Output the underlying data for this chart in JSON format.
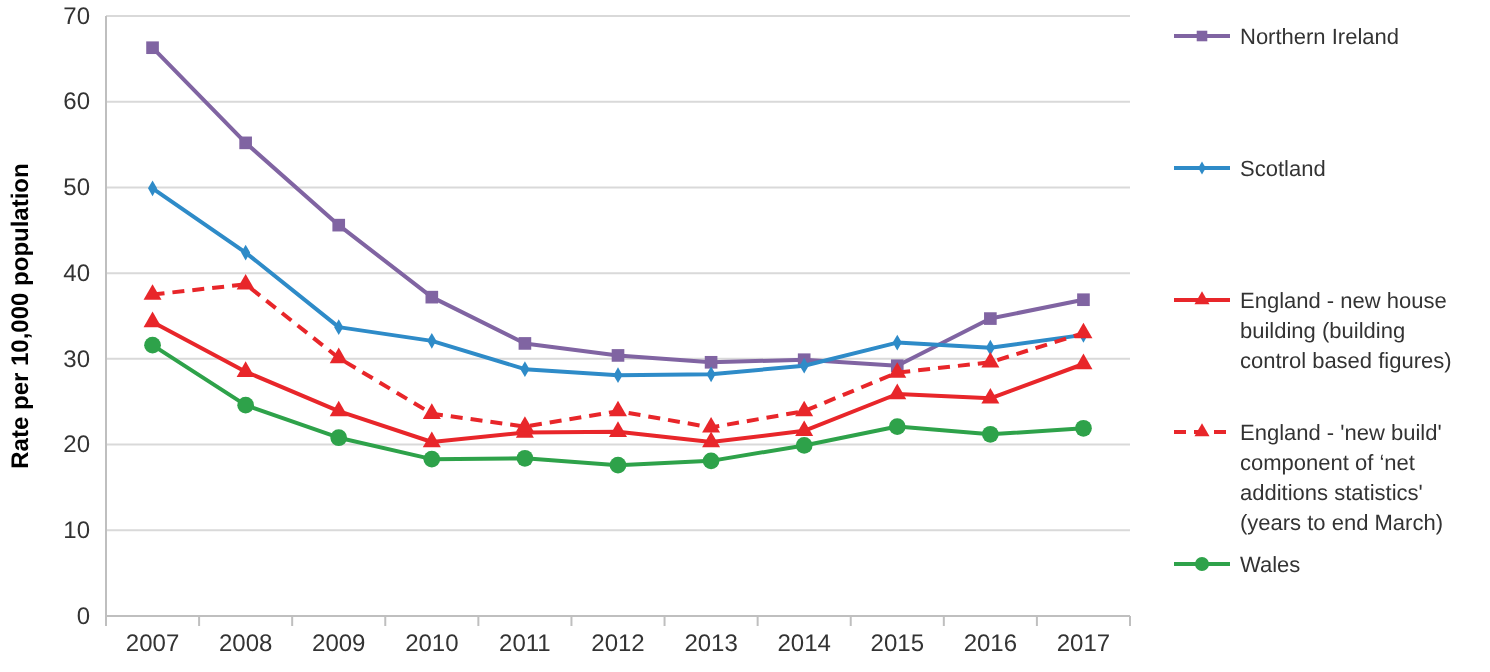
{
  "chart_data": {
    "type": "line",
    "ylabel": "Rate per 10,000 population",
    "categories": [
      "2007",
      "2008",
      "2009",
      "2010",
      "2011",
      "2012",
      "2013",
      "2014",
      "2015",
      "2016",
      "2017"
    ],
    "series": [
      {
        "name": "Northern Ireland",
        "color": "#8064a2",
        "marker": "square",
        "line_style": "solid",
        "values": [
          66.3,
          55.2,
          45.6,
          37.2,
          31.8,
          30.4,
          29.6,
          29.9,
          29.2,
          34.7,
          36.9
        ]
      },
      {
        "name": "Scotland",
        "color": "#2e8bc8",
        "marker": "diamond",
        "line_style": "solid",
        "values": [
          49.9,
          42.4,
          33.7,
          32.1,
          28.8,
          28.1,
          28.2,
          29.2,
          31.9,
          31.3,
          32.8
        ]
      },
      {
        "name": "England - new house building (building control based figures)",
        "color": "#e8262a",
        "marker": "triangle",
        "line_style": "solid",
        "values": [
          34.3,
          28.5,
          23.9,
          20.3,
          21.4,
          21.5,
          20.3,
          21.6,
          25.9,
          25.4,
          29.4
        ]
      },
      {
        "name": "England - 'new build' component of ‘net additions statistics' (years to end March)",
        "color": "#e8262a",
        "marker": "triangle",
        "line_style": "dashed",
        "values": [
          37.5,
          38.7,
          30.1,
          23.6,
          22.1,
          23.9,
          22.0,
          23.9,
          28.4,
          29.6,
          33.0
        ]
      },
      {
        "name": "Wales",
        "color": "#2ea24a",
        "marker": "circle",
        "line_style": "solid",
        "values": [
          31.6,
          24.6,
          20.8,
          18.3,
          18.4,
          17.6,
          18.1,
          19.9,
          22.1,
          21.2,
          21.9
        ]
      }
    ],
    "ylim": [
      0,
      70
    ],
    "yticks": [
      0,
      10,
      20,
      30,
      40,
      50,
      60,
      70
    ],
    "grid": "y",
    "legend": "right"
  }
}
